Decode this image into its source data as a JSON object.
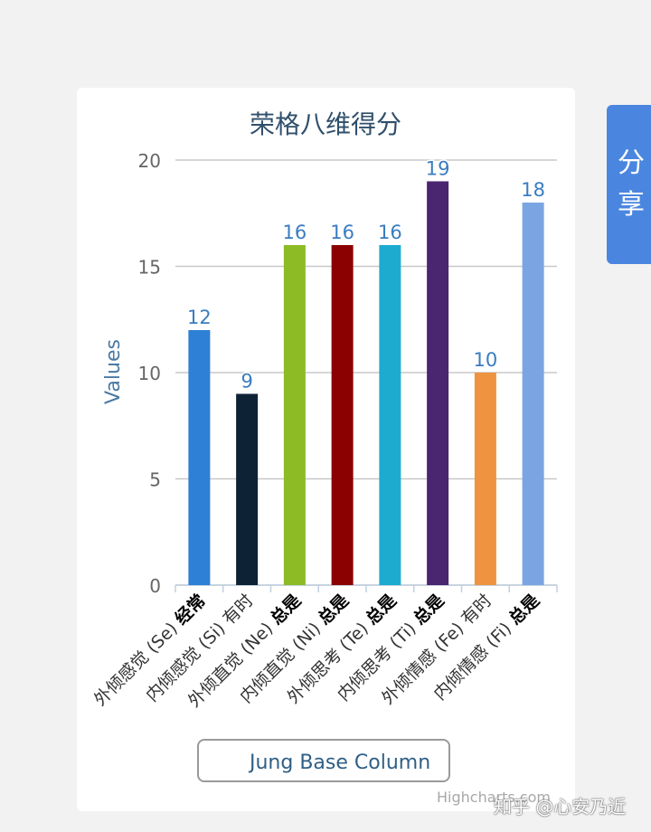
{
  "share_tab": {
    "chars": [
      "分",
      "享"
    ]
  },
  "chart_data": {
    "type": "bar",
    "title": "荣格八维得分",
    "ylabel": "Values",
    "xlabel": "",
    "ylim": [
      0,
      20
    ],
    "yticks": [
      0,
      5,
      10,
      15,
      20
    ],
    "grid": true,
    "categories": [
      {
        "prefix": "外倾感觉 (Se) ",
        "freq": "经常",
        "bold": true
      },
      {
        "prefix": "内倾感觉 (Si) ",
        "freq": "有时",
        "bold": false
      },
      {
        "prefix": "外倾直觉 (Ne) ",
        "freq": "总是",
        "bold": true
      },
      {
        "prefix": "内倾直觉 (Ni) ",
        "freq": "总是",
        "bold": true
      },
      {
        "prefix": "外倾思考 (Te) ",
        "freq": "总是",
        "bold": true
      },
      {
        "prefix": "内倾思考 (Ti) ",
        "freq": "总是",
        "bold": true
      },
      {
        "prefix": "外倾情感 (Fe) ",
        "freq": "有时",
        "bold": false
      },
      {
        "prefix": "内倾情感 (Fi) ",
        "freq": "总是",
        "bold": true
      }
    ],
    "series": [
      {
        "name": "Jung Base Column",
        "values": [
          12,
          9,
          16,
          16,
          16,
          19,
          10,
          18
        ],
        "colors": [
          "#2e7fd6",
          "#0e2236",
          "#8cbb26",
          "#8b0000",
          "#1daccf",
          "#4a2570",
          "#ee9340",
          "#7aa5e2"
        ]
      }
    ],
    "legend": "bottom-center"
  },
  "credits": "Highcharts.com",
  "watermark": "知乎 @心安乃近"
}
